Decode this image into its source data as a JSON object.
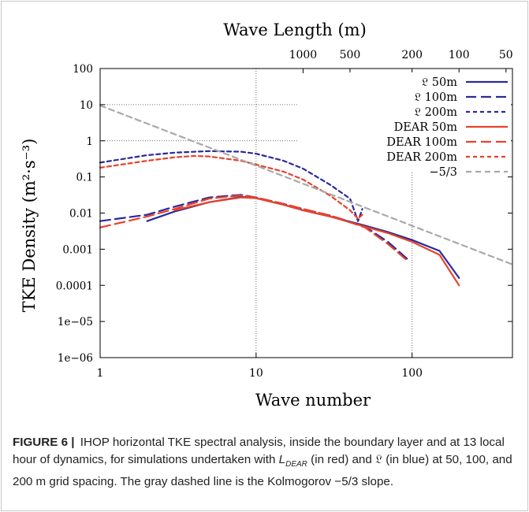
{
  "chart_data": {
    "type": "line",
    "x_scale": "log",
    "y_scale": "log",
    "xlabel": "Wave number",
    "ylabel": "TKE Density (m²·s⁻³)",
    "top_axis_label": "Wave Length (m)",
    "xlim": [
      1,
      440
    ],
    "ylim": [
      1e-06,
      100
    ],
    "x_ticks": [
      {
        "value": 1,
        "label": "1"
      },
      {
        "value": 10,
        "label": "10"
      },
      {
        "value": 100,
        "label": "100"
      }
    ],
    "y_ticks": [
      {
        "value": 100,
        "label": "100"
      },
      {
        "value": 10,
        "label": "10"
      },
      {
        "value": 1,
        "label": "1"
      },
      {
        "value": 0.1,
        "label": "0.1"
      },
      {
        "value": 0.01,
        "label": "0.01"
      },
      {
        "value": 0.001,
        "label": "0.001"
      },
      {
        "value": 0.0001,
        "label": "0.0001"
      },
      {
        "value": 1e-05,
        "label": "1e−05"
      },
      {
        "value": 1e-06,
        "label": "1e−06"
      }
    ],
    "top_ticks": [
      {
        "wavenumber": 20,
        "label": "1000"
      },
      {
        "wavenumber": 40,
        "label": "500"
      },
      {
        "wavenumber": 100,
        "label": "200"
      },
      {
        "wavenumber": 200,
        "label": "100"
      },
      {
        "wavenumber": 400,
        "label": "50"
      }
    ],
    "grid": "dotted at x=10, x=100; partial horizontal at y=10 and y=1",
    "legend_position": "top-right",
    "series": [
      {
        "name": "𝔏 50m",
        "color": "#2b2a9a",
        "dash": "solid",
        "x": [
          2,
          3,
          5,
          8,
          10,
          15,
          20,
          30,
          50,
          70,
          100,
          150,
          200
        ],
        "y": [
          0.006,
          0.011,
          0.02,
          0.028,
          0.026,
          0.017,
          0.012,
          0.008,
          0.0045,
          0.003,
          0.0018,
          0.0009,
          0.00016
        ]
      },
      {
        "name": "𝔏 100m",
        "color": "#2b2a9a",
        "dash": "long",
        "x": [
          1,
          2,
          3,
          5,
          8,
          10,
          15,
          20,
          30,
          50,
          70,
          95
        ],
        "y": [
          0.006,
          0.009,
          0.015,
          0.027,
          0.032,
          0.027,
          0.018,
          0.013,
          0.0085,
          0.0042,
          0.0016,
          0.0005
        ]
      },
      {
        "name": "𝔏 200m",
        "color": "#2b2a9a",
        "dash": "short",
        "x": [
          1,
          2,
          3,
          5,
          8,
          10,
          15,
          20,
          30,
          40,
          45,
          48
        ],
        "y": [
          0.25,
          0.4,
          0.47,
          0.52,
          0.5,
          0.44,
          0.28,
          0.17,
          0.06,
          0.025,
          0.006,
          0.013
        ]
      },
      {
        "name": "DEAR 50m",
        "color": "#e8422a",
        "dash": "solid",
        "x": [
          3,
          5,
          8,
          10,
          15,
          20,
          30,
          50,
          70,
          100,
          150,
          200
        ],
        "y": [
          0.012,
          0.02,
          0.027,
          0.026,
          0.017,
          0.012,
          0.008,
          0.0042,
          0.0028,
          0.0016,
          0.0007,
          0.0001
        ]
      },
      {
        "name": "DEAR 100m",
        "color": "#e8422a",
        "dash": "long",
        "x": [
          1,
          2,
          3,
          5,
          8,
          10,
          15,
          20,
          30,
          50,
          70,
          95
        ],
        "y": [
          0.004,
          0.008,
          0.013,
          0.025,
          0.031,
          0.027,
          0.018,
          0.013,
          0.0085,
          0.004,
          0.0014,
          0.00045
        ]
      },
      {
        "name": "DEAR 200m",
        "color": "#e8422a",
        "dash": "short",
        "x": [
          1,
          2,
          3,
          4,
          5,
          8,
          10,
          15,
          20,
          30,
          40,
          45,
          48
        ],
        "y": [
          0.18,
          0.28,
          0.35,
          0.38,
          0.37,
          0.28,
          0.22,
          0.14,
          0.085,
          0.03,
          0.012,
          0.007,
          0.009
        ]
      },
      {
        "name": "−5/3",
        "color": "#a9a9a9",
        "dash": "dash",
        "x": [
          1,
          440
        ],
        "y": [
          9.5,
          0.00038
        ]
      }
    ]
  },
  "caption": {
    "label": "FIGURE 6",
    "sep": "|",
    "text_a": "IHOP horizontal TKE spectral analysis, inside the boundary layer and at 13 local hour of dynamics, for simulations undertaken with ",
    "L": "L",
    "L_sub": "DEAR",
    "text_b": " (in red) and 𝔏 (in blue) at 50, 100, and 200 m grid spacing. The gray dashed line is the Kolmogorov −5/3 slope."
  }
}
